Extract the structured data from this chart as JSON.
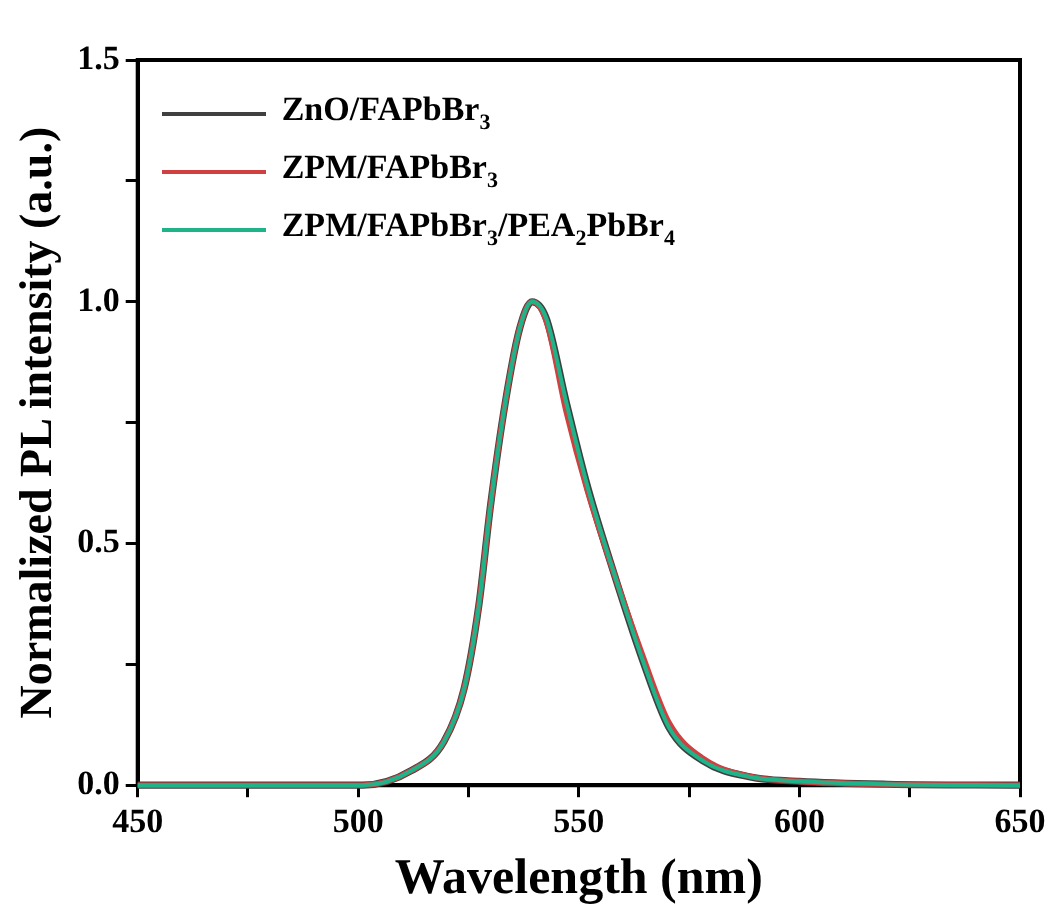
{
  "chart_data": {
    "type": "line",
    "xlabel": "Wavelength (nm)",
    "ylabel": "Normalized PL intensity (a.u.)",
    "xlim": [
      450,
      650
    ],
    "ylim": [
      0,
      1.5
    ],
    "xticks": [
      450,
      {
        "value": 475,
        "label": null
      },
      500,
      {
        "value": 525,
        "label": null
      },
      550,
      {
        "value": 575,
        "label": null
      },
      600,
      {
        "value": 625,
        "label": null
      },
      650
    ],
    "yticks": [
      {
        "value": 0,
        "label": "0.0"
      },
      {
        "value": 0.25,
        "label": null
      },
      {
        "value": 0.5,
        "label": "0.5"
      },
      {
        "value": 0.75,
        "label": null
      },
      {
        "value": 1,
        "label": "1.0"
      },
      {
        "value": 1.25,
        "label": null
      },
      {
        "value": 1.5,
        "label": "1.5"
      }
    ],
    "grid": false,
    "legend": "top left",
    "marker": "none",
    "line_style": "solid",
    "series": [
      {
        "name": "ZnO/FAPbBr$_{3}$",
        "color": "#404040",
        "x": [
          450,
          490,
          501,
          512,
          519.4,
          524,
          527.3,
          530,
          533.3,
          536.6,
          539.4,
          542.6,
          547.2,
          551.9,
          557.9,
          564.4,
          570.4,
          578.2,
          588.9,
          600,
          620,
          650
        ],
        "values": [
          0,
          0,
          0,
          0.03,
          0.09,
          0.2,
          0.37,
          0.58,
          0.79,
          0.945,
          1,
          0.966,
          0.79,
          0.62,
          0.44,
          0.26,
          0.12,
          0.05,
          0.017,
          0.008,
          0.002,
          0
        ]
      },
      {
        "name": "ZPM/FAPbBr$_{3}$",
        "color": "#d04040",
        "x": [
          450,
          490,
          501,
          512,
          519.4,
          524,
          527.3,
          530,
          533.3,
          536.6,
          539.4,
          542.6,
          547.2,
          551.9,
          557.9,
          564.4,
          570.4,
          578.2,
          588.9,
          600,
          620,
          650
        ],
        "values": [
          0,
          0,
          0,
          0.03,
          0.09,
          0.2,
          0.37,
          0.58,
          0.79,
          0.945,
          1,
          0.96,
          0.77,
          0.61,
          0.44,
          0.27,
          0.13,
          0.055,
          0.018,
          0.008,
          0.002,
          0
        ]
      },
      {
        "name": "ZPM/FAPbBr$_{3}$/PEA$_{2}$PbBr$_{4}$",
        "color": "#1fb38a",
        "x": [
          450,
          490,
          501,
          512,
          519.4,
          524,
          527.3,
          530,
          533.3,
          536.6,
          539.4,
          542.6,
          547.2,
          551.9,
          557.9,
          564.4,
          570.4,
          578.2,
          588.9,
          600,
          620,
          650
        ],
        "values": [
          0,
          0,
          0,
          0.03,
          0.09,
          0.2,
          0.37,
          0.58,
          0.79,
          0.945,
          1,
          0.966,
          0.79,
          0.62,
          0.44,
          0.26,
          0.12,
          0.05,
          0.017,
          0.008,
          0.002,
          0
        ]
      }
    ]
  }
}
